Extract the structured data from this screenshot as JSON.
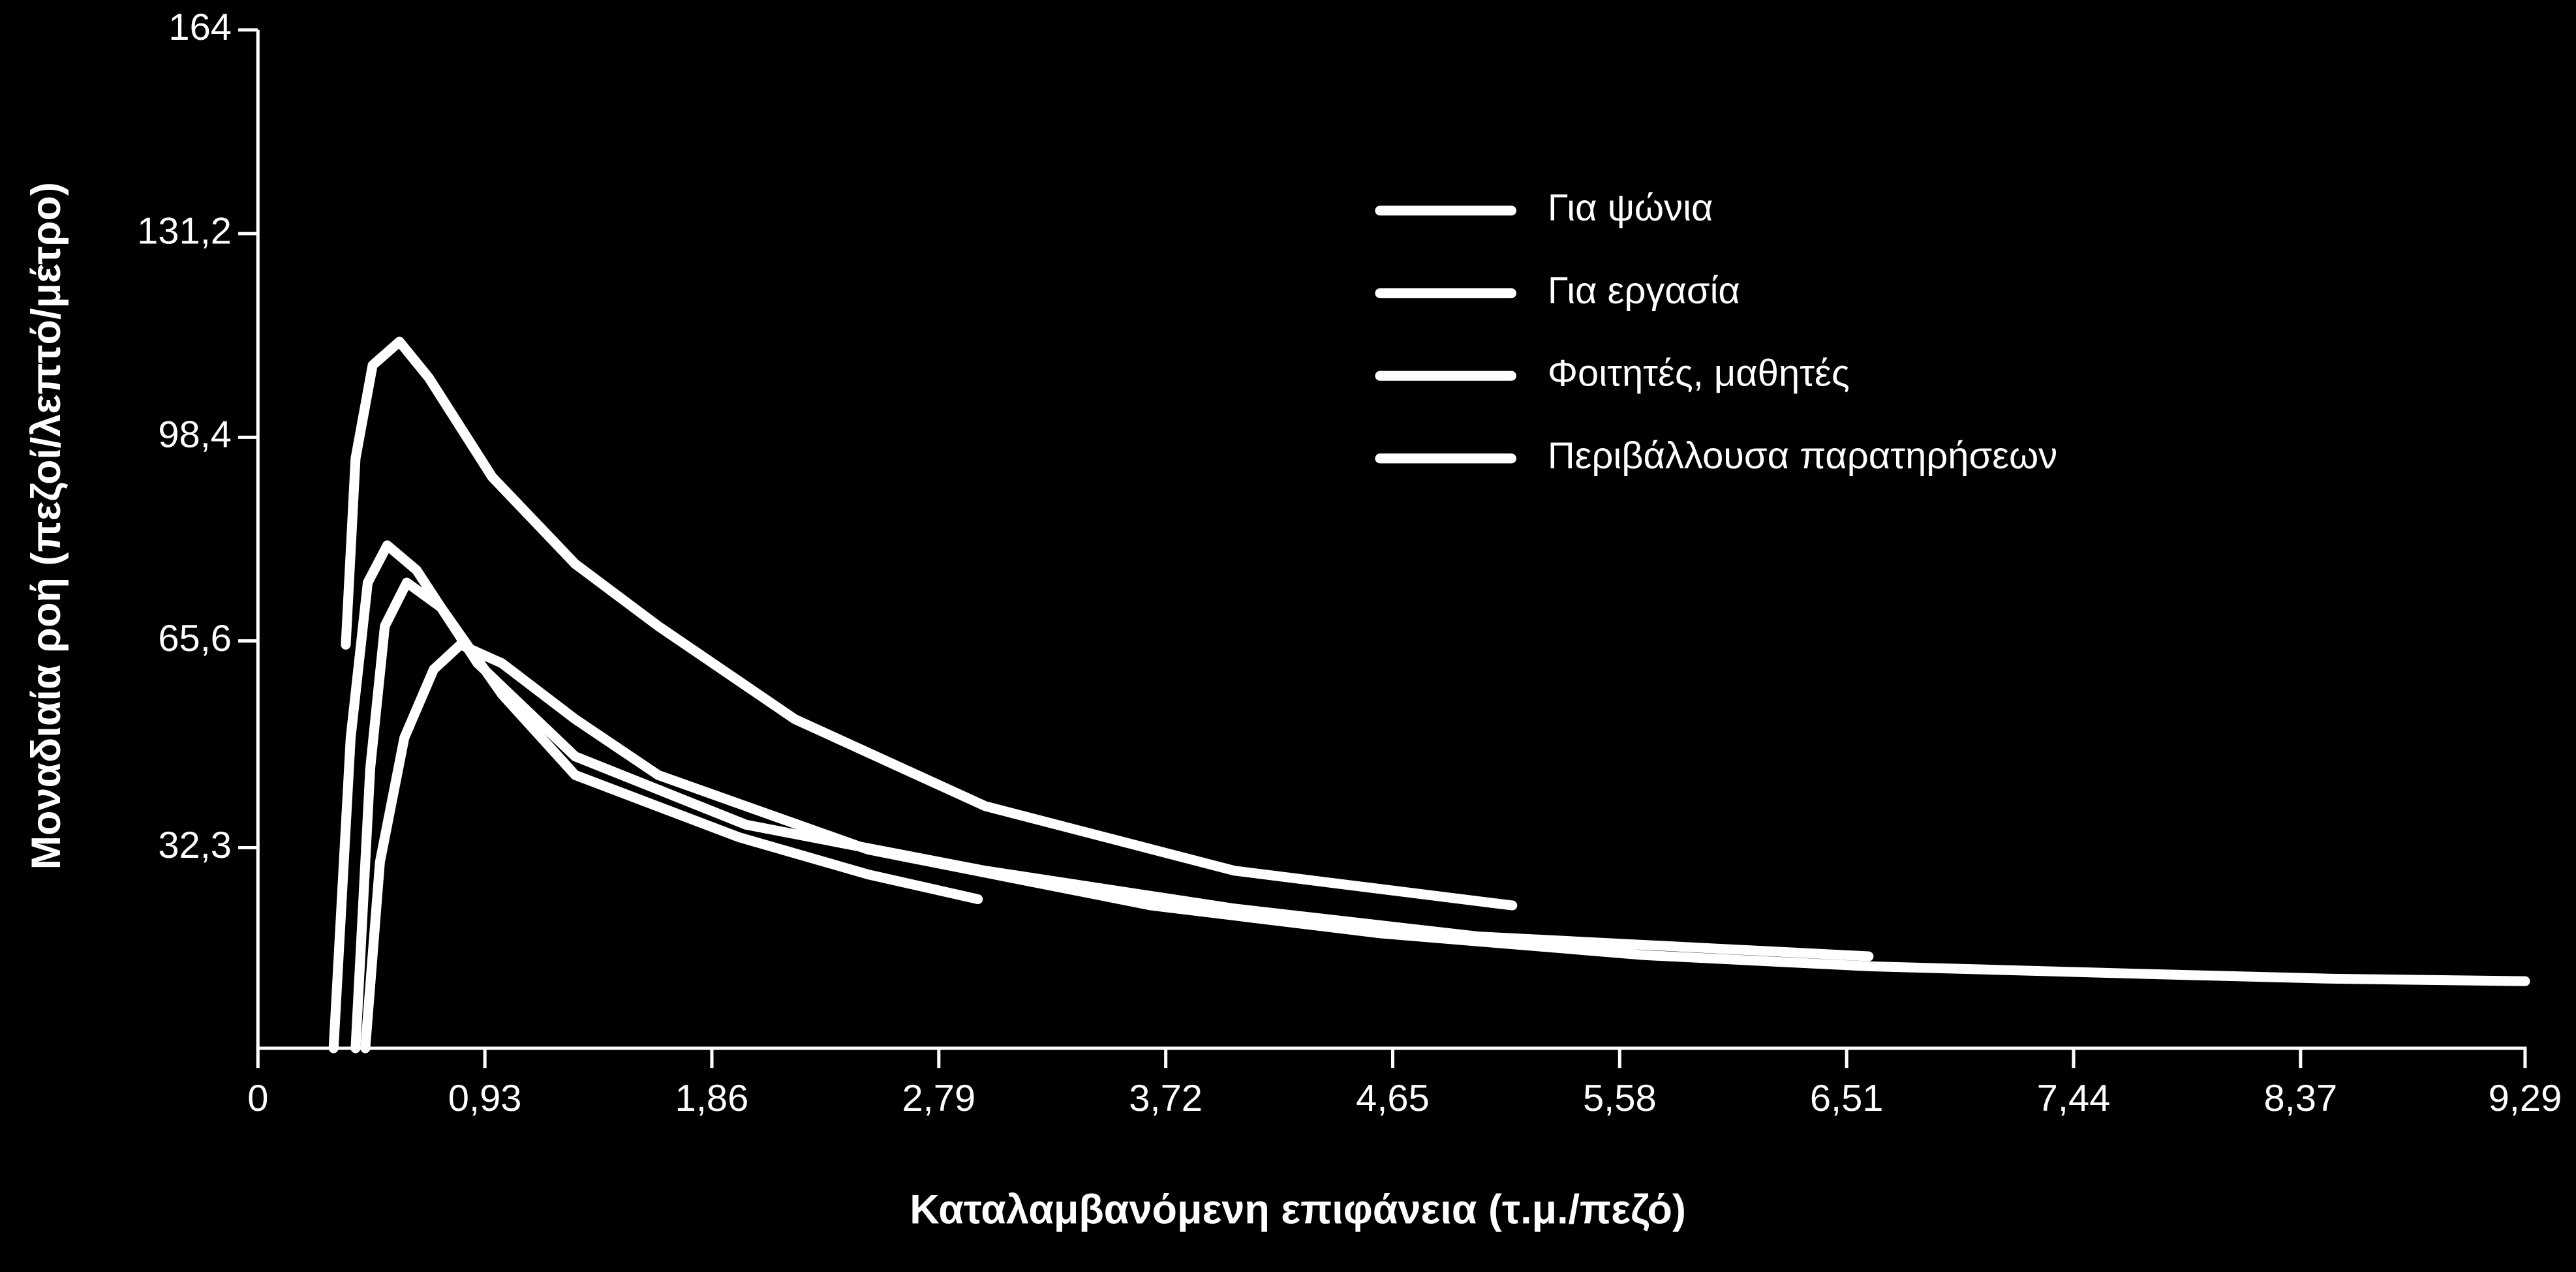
{
  "chart_data": {
    "type": "line",
    "x_label": "Καταλαμβανόμενη επιφάνεια (τ.μ./πεζό)",
    "y_label": "Μοναδιαία ροή (πεζοί/λεπτό/μέτρο)",
    "xlim": [
      0,
      9.29
    ],
    "ylim": [
      0,
      164
    ],
    "xticks": [
      0,
      {
        "value": 0.93,
        "label": "0,93"
      },
      {
        "value": 1.86,
        "label": "1,86"
      },
      {
        "value": 2.79,
        "label": "2,79"
      },
      {
        "value": 3.72,
        "label": "3,72"
      },
      {
        "value": 4.65,
        "label": "4,65"
      },
      {
        "value": 5.58,
        "label": "5,58"
      },
      {
        "value": 6.51,
        "label": "6,51"
      },
      {
        "value": 7.44,
        "label": "7,44"
      },
      {
        "value": 8.37,
        "label": "8,37"
      },
      {
        "value": 9.29,
        "label": "9,29"
      }
    ],
    "yticks": [
      {
        "value": 32.3,
        "label": "32,3"
      },
      {
        "value": 65.6,
        "label": "65,6"
      },
      {
        "value": 98.4,
        "label": "98,4"
      },
      {
        "value": 131.2,
        "label": "131,2"
      },
      164
    ],
    "series": [
      {
        "name": "Για ψώνια",
        "color": "#ffffff",
        "x": [
          0.36,
          0.4,
          0.47,
          0.58,
          0.7,
          0.96,
          1.3,
          1.64,
          2.2,
          2.98,
          4.0,
          5.14
        ],
        "values": [
          65,
          95,
          110,
          113.8,
          108,
          92,
          78,
          68,
          53,
          39,
          28.6,
          23
        ]
      },
      {
        "name": "Για εργασία",
        "color": "#ffffff",
        "x": [
          0.31,
          0.38,
          0.45,
          0.53,
          0.65,
          0.9,
          1.3,
          2.0,
          2.98,
          4.0,
          5.0,
          6.6
        ],
        "values": [
          0,
          50,
          75,
          81,
          77,
          62,
          47,
          36,
          28.6,
          22.5,
          18,
          14.8
        ]
      },
      {
        "name": "Φοιτητές, μαθητές",
        "color": "#ffffff",
        "x": [
          0.4,
          0.46,
          0.52,
          0.61,
          0.75,
          1.0,
          1.3,
          1.97,
          2.5,
          2.95
        ],
        "values": [
          0,
          45,
          68,
          75,
          71,
          57,
          44,
          34,
          28,
          24
        ]
      },
      {
        "name": "Περιβάλλουσα παρατηρήσεων",
        "color": "#ffffff",
        "x": [
          0.44,
          0.5,
          0.6,
          0.72,
          0.83,
          1.0,
          1.3,
          1.64,
          2.5,
          3.66,
          4.6,
          5.68,
          6.6,
          7.7,
          8.5,
          9.29
        ],
        "values": [
          0,
          30,
          50,
          61,
          65,
          62,
          53,
          44,
          32,
          23,
          18.5,
          15,
          13.2,
          12,
          11.2,
          10.8
        ]
      }
    ]
  }
}
